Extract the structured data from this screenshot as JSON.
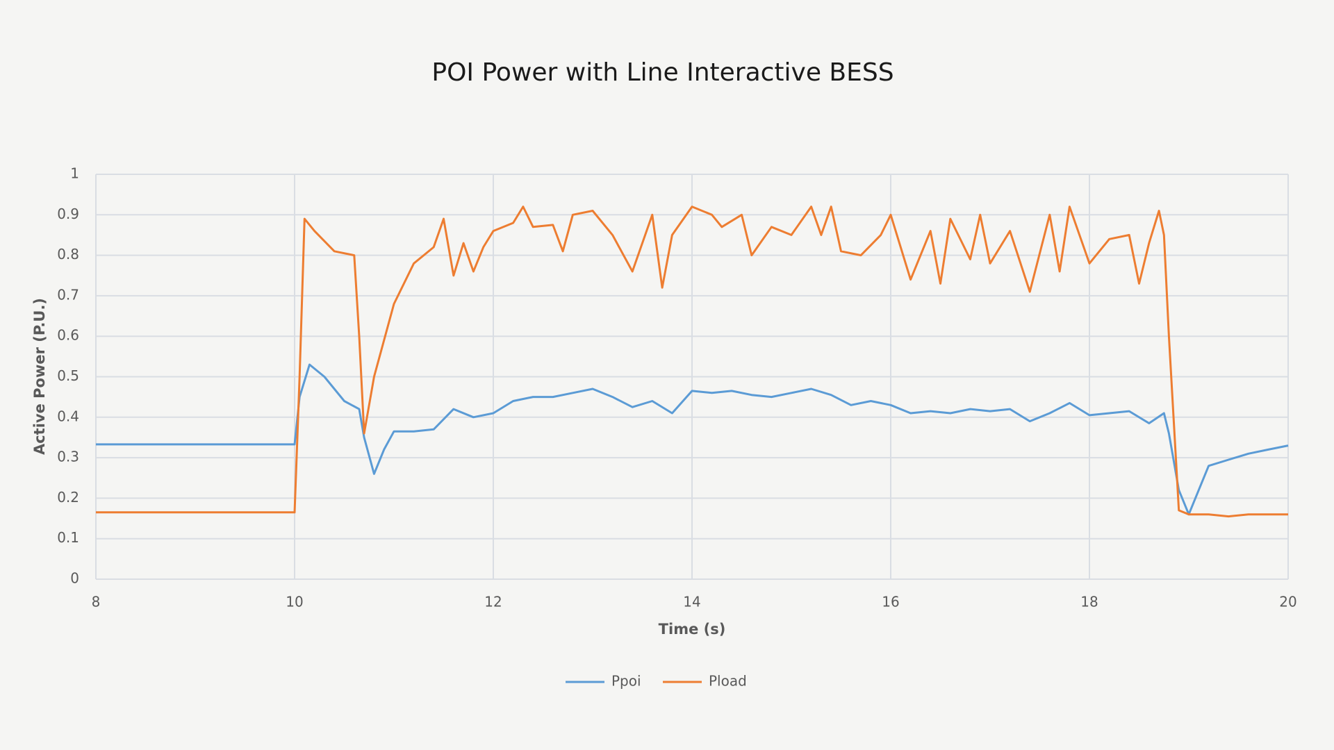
{
  "chart_data": {
    "type": "line",
    "title": "POI Power with Line Interactive BESS",
    "x_label": "Time (s)",
    "y_label": "Active Power (P.U.)",
    "xlim": [
      8,
      20
    ],
    "xticks": [
      8,
      10,
      12,
      14,
      16,
      18,
      20
    ],
    "ylim": [
      0,
      1
    ],
    "yticks": [
      0,
      0.1,
      0.2,
      0.3,
      0.4,
      0.5,
      0.6,
      0.7,
      0.8,
      0.9,
      1
    ],
    "grid": true,
    "legend": "bottom",
    "series": [
      {
        "name": "Ppoi",
        "color": "#5b9bd5",
        "x": [
          8,
          10,
          10.05,
          10.15,
          10.3,
          10.5,
          10.65,
          10.7,
          10.8,
          10.9,
          11.0,
          11.2,
          11.4,
          11.6,
          11.8,
          12.0,
          12.2,
          12.4,
          12.6,
          12.8,
          13.0,
          13.2,
          13.4,
          13.6,
          13.8,
          14.0,
          14.2,
          14.4,
          14.6,
          14.8,
          15.0,
          15.2,
          15.4,
          15.6,
          15.8,
          16.0,
          16.2,
          16.4,
          16.6,
          16.8,
          17.0,
          17.2,
          17.4,
          17.6,
          17.8,
          18.0,
          18.2,
          18.4,
          18.6,
          18.75,
          18.8,
          18.9,
          19.0,
          19.1,
          19.2,
          19.4,
          19.6,
          19.8,
          20.0
        ],
        "values": [
          0.333,
          0.333,
          0.45,
          0.53,
          0.5,
          0.44,
          0.42,
          0.35,
          0.26,
          0.32,
          0.365,
          0.365,
          0.37,
          0.42,
          0.4,
          0.41,
          0.44,
          0.45,
          0.45,
          0.46,
          0.47,
          0.45,
          0.425,
          0.44,
          0.41,
          0.465,
          0.46,
          0.465,
          0.455,
          0.45,
          0.46,
          0.47,
          0.455,
          0.43,
          0.44,
          0.43,
          0.41,
          0.415,
          0.41,
          0.42,
          0.415,
          0.42,
          0.39,
          0.41,
          0.435,
          0.405,
          0.41,
          0.415,
          0.385,
          0.41,
          0.36,
          0.22,
          0.16,
          0.22,
          0.28,
          0.295,
          0.31,
          0.32,
          0.33
        ]
      },
      {
        "name": "Pload",
        "color": "#ed7d31",
        "x": [
          8,
          10,
          10.05,
          10.1,
          10.2,
          10.4,
          10.6,
          10.65,
          10.7,
          10.8,
          11.0,
          11.2,
          11.4,
          11.5,
          11.6,
          11.7,
          11.8,
          11.9,
          12.0,
          12.2,
          12.3,
          12.4,
          12.6,
          12.7,
          12.8,
          13.0,
          13.2,
          13.4,
          13.6,
          13.7,
          13.8,
          14.0,
          14.2,
          14.3,
          14.5,
          14.6,
          14.8,
          15.0,
          15.2,
          15.3,
          15.4,
          15.5,
          15.7,
          15.9,
          16.0,
          16.2,
          16.4,
          16.5,
          16.6,
          16.8,
          16.9,
          17.0,
          17.2,
          17.4,
          17.6,
          17.7,
          17.8,
          18.0,
          18.2,
          18.4,
          18.5,
          18.6,
          18.7,
          18.75,
          18.8,
          18.9,
          19.0,
          19.2,
          19.4,
          19.6,
          19.8,
          20.0
        ],
        "values": [
          0.165,
          0.165,
          0.5,
          0.89,
          0.86,
          0.81,
          0.8,
          0.6,
          0.36,
          0.5,
          0.68,
          0.78,
          0.82,
          0.89,
          0.75,
          0.83,
          0.76,
          0.82,
          0.86,
          0.88,
          0.92,
          0.87,
          0.875,
          0.81,
          0.9,
          0.91,
          0.85,
          0.76,
          0.9,
          0.72,
          0.85,
          0.92,
          0.9,
          0.87,
          0.9,
          0.8,
          0.87,
          0.85,
          0.92,
          0.85,
          0.92,
          0.81,
          0.8,
          0.85,
          0.9,
          0.74,
          0.86,
          0.73,
          0.89,
          0.79,
          0.9,
          0.78,
          0.86,
          0.71,
          0.9,
          0.76,
          0.92,
          0.78,
          0.84,
          0.85,
          0.73,
          0.83,
          0.91,
          0.85,
          0.6,
          0.17,
          0.16,
          0.16,
          0.155,
          0.16,
          0.16,
          0.16
        ]
      }
    ]
  }
}
